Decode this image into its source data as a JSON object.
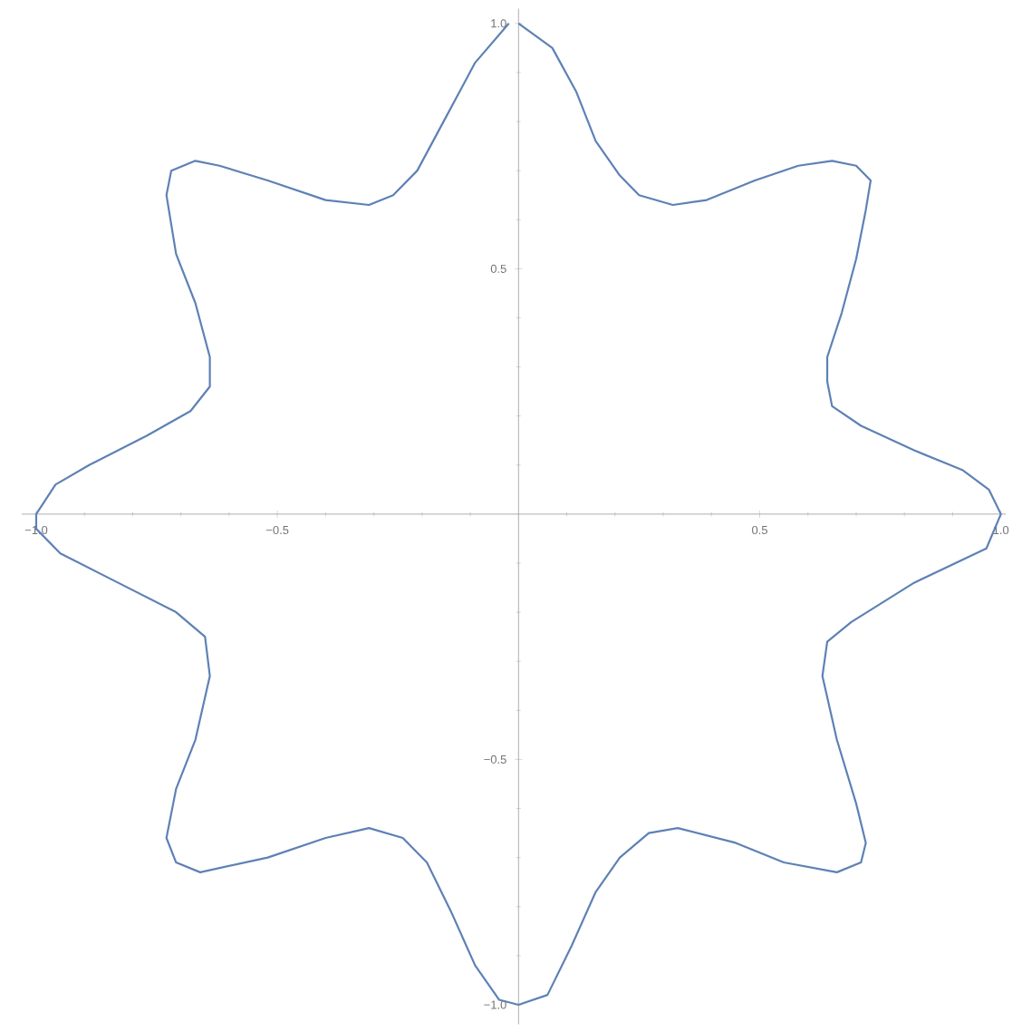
{
  "chart_data": {
    "type": "line",
    "xlim": [
      -1.03,
      1.01
    ],
    "ylim": [
      -1.04,
      1.03
    ],
    "xticks": [
      {
        "value": -1.0,
        "label": "−1.0"
      },
      {
        "value": -0.9,
        "label": null
      },
      {
        "value": -0.8,
        "label": null
      },
      {
        "value": -0.7,
        "label": null
      },
      {
        "value": -0.6,
        "label": null
      },
      {
        "value": -0.5,
        "label": "−0.5"
      },
      {
        "value": -0.4,
        "label": null
      },
      {
        "value": -0.3,
        "label": null
      },
      {
        "value": -0.2,
        "label": null
      },
      {
        "value": -0.1,
        "label": null
      },
      {
        "value": 0.1,
        "label": null
      },
      {
        "value": 0.2,
        "label": null
      },
      {
        "value": 0.3,
        "label": null
      },
      {
        "value": 0.4,
        "label": null
      },
      {
        "value": 0.5,
        "label": "0.5"
      },
      {
        "value": 0.6,
        "label": null
      },
      {
        "value": 0.7,
        "label": null
      },
      {
        "value": 0.8,
        "label": null
      },
      {
        "value": 0.9,
        "label": null
      },
      {
        "value": 1.0,
        "label": "1.0"
      }
    ],
    "yticks": [
      {
        "value": -1.0,
        "label": "−1.0"
      },
      {
        "value": -0.9,
        "label": null
      },
      {
        "value": -0.8,
        "label": null
      },
      {
        "value": -0.7,
        "label": null
      },
      {
        "value": -0.6,
        "label": null
      },
      {
        "value": -0.5,
        "label": "−0.5"
      },
      {
        "value": -0.4,
        "label": null
      },
      {
        "value": -0.3,
        "label": null
      },
      {
        "value": -0.2,
        "label": null
      },
      {
        "value": -0.1,
        "label": null
      },
      {
        "value": 0.1,
        "label": null
      },
      {
        "value": 0.2,
        "label": null
      },
      {
        "value": 0.3,
        "label": null
      },
      {
        "value": 0.4,
        "label": null
      },
      {
        "value": 0.5,
        "label": "0.5"
      },
      {
        "value": 0.6,
        "label": null
      },
      {
        "value": 0.7,
        "label": null
      },
      {
        "value": 0.8,
        "label": null
      },
      {
        "value": 0.9,
        "label": null
      },
      {
        "value": 1.0,
        "label": "1.0"
      }
    ],
    "series": [
      {
        "color": "#5e81b5",
        "x": [
          0,
          0.07,
          0.12,
          0.16,
          0.21,
          0.25,
          0.32,
          0.39,
          0.49,
          0.58,
          0.65,
          0.7,
          0.73,
          0.72,
          0.7,
          0.67,
          0.64,
          0.64,
          0.65,
          0.71,
          0.82,
          0.92,
          0.975,
          1.0,
          0.97,
          0.82,
          0.69,
          0.64,
          0.63,
          0.66,
          0.7,
          0.72,
          0.71,
          0.66,
          0.55,
          0.45,
          0.33,
          0.27,
          0.21,
          0.16,
          0.11,
          0.06,
          0,
          -0.04,
          -0.09,
          -0.14,
          -0.19,
          -0.24,
          -0.31,
          -0.4,
          -0.52,
          -0.66,
          -0.71,
          -0.73,
          -0.71,
          -0.67,
          -0.64,
          -0.65,
          -0.71,
          -0.83,
          -0.95,
          -1.0,
          -1.0,
          -0.96,
          -0.89,
          -0.77,
          -0.68,
          -0.64,
          -0.64,
          -0.67,
          -0.71,
          -0.73,
          -0.72,
          -0.67,
          -0.62,
          -0.52,
          -0.4,
          -0.31,
          -0.26,
          -0.21,
          -0.15,
          -0.09,
          -0.02
        ],
        "values": [
          1.0,
          0.95,
          0.86,
          0.76,
          0.69,
          0.65,
          0.63,
          0.64,
          0.68,
          0.71,
          0.72,
          0.71,
          0.68,
          0.62,
          0.52,
          0.41,
          0.32,
          0.27,
          0.22,
          0.18,
          0.13,
          0.09,
          0.05,
          0,
          -0.07,
          -0.14,
          -0.22,
          -0.26,
          -0.33,
          -0.46,
          -0.59,
          -0.67,
          -0.71,
          -0.73,
          -0.71,
          -0.67,
          -0.64,
          -0.65,
          -0.7,
          -0.77,
          -0.88,
          -0.98,
          -1.0,
          -0.99,
          -0.92,
          -0.81,
          -0.71,
          -0.66,
          -0.64,
          -0.66,
          -0.7,
          -0.73,
          -0.71,
          -0.66,
          -0.56,
          -0.46,
          -0.33,
          -0.25,
          -0.2,
          -0.14,
          -0.08,
          -0.03,
          0,
          0.06,
          0.1,
          0.16,
          0.21,
          0.26,
          0.32,
          0.43,
          0.53,
          0.65,
          0.7,
          0.72,
          0.71,
          0.68,
          0.64,
          0.63,
          0.65,
          0.7,
          0.81,
          0.92,
          1.0
        ]
      }
    ]
  }
}
